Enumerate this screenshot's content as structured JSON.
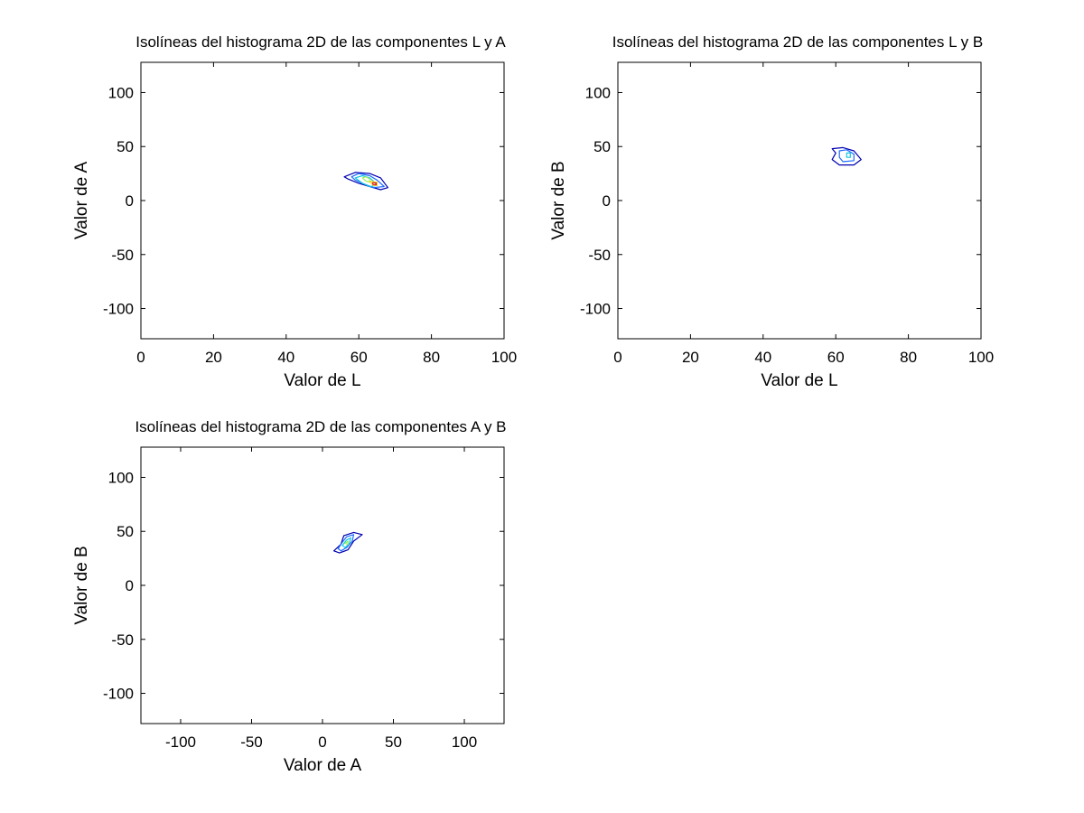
{
  "chart_data": [
    {
      "type": "contour",
      "title": "Isolíneas del histograma 2D de las componentes L y A",
      "xlabel": "Valor de L",
      "ylabel": "Valor de A",
      "xlim": [
        0,
        100
      ],
      "ylim": [
        -128,
        128
      ],
      "xticks": [
        0,
        20,
        40,
        60,
        80,
        100
      ],
      "yticks": [
        100,
        50,
        0,
        -50,
        -100
      ],
      "levels": [
        {
          "level": 1,
          "color": "#0000b0",
          "points": [
            [
              56,
              22
            ],
            [
              59,
              26
            ],
            [
              63,
              25
            ],
            [
              66,
              21
            ],
            [
              68,
              12
            ],
            [
              66,
              10
            ],
            [
              63,
              13
            ],
            [
              60,
              16
            ],
            [
              57,
              20
            ]
          ]
        },
        {
          "level": 2,
          "color": "#1e6bff",
          "points": [
            [
              58,
              22
            ],
            [
              60,
              25
            ],
            [
              63,
              23
            ],
            [
              65,
              19
            ],
            [
              67,
              13
            ],
            [
              64,
              12
            ],
            [
              61,
              16
            ],
            [
              59,
              19
            ]
          ]
        },
        {
          "level": 3,
          "color": "#14c8e0",
          "points": [
            [
              59,
              21
            ],
            [
              61,
              23
            ],
            [
              63,
              21
            ],
            [
              64,
              18
            ],
            [
              65,
              14
            ],
            [
              63,
              13
            ],
            [
              61,
              16
            ]
          ]
        },
        {
          "level": 4,
          "color": "#9cf060",
          "points": [
            [
              61,
              21
            ],
            [
              62,
              22
            ],
            [
              63,
              20
            ],
            [
              63,
              17
            ],
            [
              62,
              18
            ]
          ]
        },
        {
          "level": 5,
          "color": "#ffd21e",
          "points": [
            [
              63,
              18
            ],
            [
              65,
              17
            ],
            [
              65,
              14
            ],
            [
              64,
              14
            ]
          ]
        },
        {
          "level": 6,
          "color": "#e61e1e",
          "points": [
            [
              63.8,
              16.5
            ],
            [
              64.8,
              16.2
            ],
            [
              64.8,
              14.6
            ],
            [
              63.9,
              14.8
            ]
          ]
        }
      ]
    },
    {
      "type": "contour",
      "title": "Isolíneas del histograma 2D de las componentes L y B",
      "xlabel": "Valor de L",
      "ylabel": "Valor de B",
      "xlim": [
        0,
        100
      ],
      "ylim": [
        -128,
        128
      ],
      "xticks": [
        0,
        20,
        40,
        60,
        80,
        100
      ],
      "yticks": [
        100,
        50,
        0,
        -50,
        -100
      ],
      "levels": [
        {
          "level": 1,
          "color": "#0000b0",
          "points": [
            [
              59,
              48
            ],
            [
              62,
              49
            ],
            [
              65,
              46
            ],
            [
              67,
              38
            ],
            [
              65,
              33
            ],
            [
              61,
              33
            ],
            [
              59,
              38
            ],
            [
              60,
              44
            ]
          ]
        },
        {
          "level": 2,
          "color": "#1e6bff",
          "points": [
            [
              61,
              46
            ],
            [
              63,
              47
            ],
            [
              65,
              43
            ],
            [
              65,
              37
            ],
            [
              62,
              36
            ],
            [
              61,
              40
            ]
          ]
        },
        {
          "level": 3,
          "color": "#14c8e0",
          "points": [
            [
              63,
              44
            ],
            [
              64,
              44
            ],
            [
              64,
              40
            ],
            [
              63,
              40
            ]
          ]
        }
      ]
    },
    {
      "type": "contour",
      "title": "Isolíneas del histograma 2D de las componentes A y B",
      "xlabel": "Valor de A",
      "ylabel": "Valor de B",
      "xlim": [
        -128,
        128
      ],
      "ylim": [
        -128,
        128
      ],
      "xticks": [
        -100,
        -50,
        0,
        50,
        100
      ],
      "yticks": [
        100,
        50,
        0,
        -50,
        -100
      ],
      "levels": [
        {
          "level": 1,
          "color": "#0000b0",
          "points": [
            [
              8,
              32
            ],
            [
              13,
              38
            ],
            [
              15,
              46
            ],
            [
              22,
              49
            ],
            [
              28,
              47
            ],
            [
              22,
              41
            ],
            [
              18,
              33
            ],
            [
              12,
              30
            ]
          ]
        },
        {
          "level": 2,
          "color": "#1e6bff",
          "points": [
            [
              11,
              34
            ],
            [
              14,
              40
            ],
            [
              17,
              45
            ],
            [
              22,
              47
            ],
            [
              21,
              41
            ],
            [
              17,
              35
            ],
            [
              13,
              32
            ]
          ]
        },
        {
          "level": 3,
          "color": "#14c8e0",
          "points": [
            [
              14,
              37
            ],
            [
              17,
              42
            ],
            [
              20,
              44
            ],
            [
              19,
              39
            ],
            [
              16,
              35
            ]
          ]
        },
        {
          "level": 4,
          "color": "#9cf060",
          "points": [
            [
              16,
              39
            ],
            [
              18,
              41
            ],
            [
              18,
              38
            ]
          ]
        }
      ]
    }
  ]
}
